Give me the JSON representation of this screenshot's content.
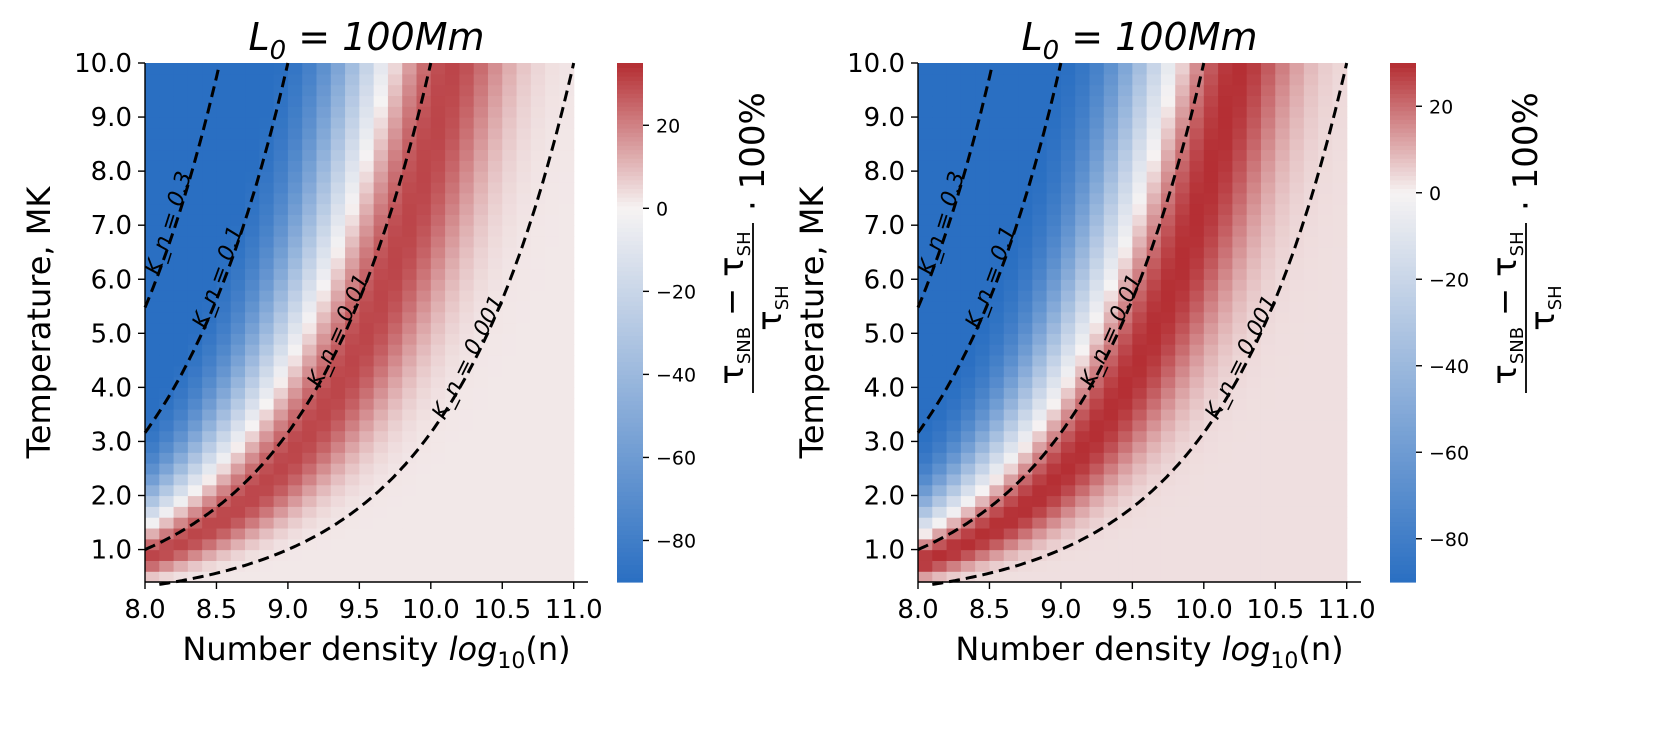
{
  "figure": {
    "colorbar_label": "(τ_SNB − τ_SH) / τ_SH · 100%",
    "colorbar_label_parts": {
      "numerator_a": "τ",
      "numerator_a_sub": "SNB",
      "minus": " − ",
      "numerator_b": "τ",
      "numerator_b_sub": "SH",
      "denominator": "τ",
      "denominator_sub": "SH",
      "suffix": "· 100%"
    }
  },
  "chart_data": [
    {
      "type": "heatmap",
      "title": "L_0 = 100Mm",
      "title_parts": {
        "main": "L",
        "sub": "0",
        "rest": " = 100Mm"
      },
      "xlabel": "Number density log10(n)",
      "xlabel_parts": {
        "prefix": "Number density ",
        "func": "log",
        "sub": "10",
        "arg": "(n)"
      },
      "ylabel": "Temperature, MK",
      "xlim": [
        8.0,
        11.1
      ],
      "ylim": [
        0.4,
        10.0
      ],
      "x_ticks": [
        "8.0",
        "8.5",
        "9.0",
        "9.5",
        "10.0",
        "10.5",
        "11.0"
      ],
      "y_ticks": [
        "1.0",
        "2.0",
        "3.0",
        "4.0",
        "5.0",
        "6.0",
        "7.0",
        "8.0",
        "9.0",
        "10.0"
      ],
      "colorbar": {
        "range": [
          -90,
          35
        ],
        "ticks": [
          -80,
          -60,
          -40,
          -20,
          0,
          20
        ],
        "tick_labels": [
          "−80",
          "−60",
          "−40",
          "−20",
          "0",
          "20"
        ]
      },
      "colormap": {
        "low": "#2a6fc2",
        "mid": "#f6f3f3",
        "high": "#b42d32"
      },
      "grid_x_extent": 11.0,
      "ridge_kn_center": 0.0075,
      "ridge_peak_value": 30,
      "background_value": 2,
      "contours": [
        {
          "label": "K_n = 0.3",
          "kn": 0.3
        },
        {
          "label": "K_n = 0.1",
          "kn": 0.1
        },
        {
          "label": "K_n = 0.01",
          "kn": 0.01
        },
        {
          "label": "K_n = 0.001",
          "kn": 0.001
        }
      ]
    },
    {
      "type": "heatmap",
      "title": "L_0 = 100Mm",
      "title_parts": {
        "main": "L",
        "sub": "0",
        "rest": " = 100Mm"
      },
      "xlabel": "Number density log10(n)",
      "xlabel_parts": {
        "prefix": "Number density ",
        "func": "log",
        "sub": "10",
        "arg": "(n)"
      },
      "ylabel": "Temperature, MK",
      "xlim": [
        8.0,
        11.1
      ],
      "ylim": [
        0.4,
        10.0
      ],
      "x_ticks": [
        "8.0",
        "8.5",
        "9.0",
        "9.5",
        "10.0",
        "10.5",
        "11.0"
      ],
      "y_ticks": [
        "1.0",
        "2.0",
        "3.0",
        "4.0",
        "5.0",
        "6.0",
        "7.0",
        "8.0",
        "9.0",
        "10.0"
      ],
      "colorbar": {
        "range": [
          -90,
          30
        ],
        "ticks": [
          -80,
          -60,
          -40,
          -20,
          0,
          20
        ],
        "tick_labels": [
          "−80",
          "−60",
          "−40",
          "−20",
          "0",
          "20"
        ]
      },
      "colormap": {
        "low": "#2a6fc2",
        "mid": "#f6f3f3",
        "high": "#b42d32"
      },
      "grid_x_extent": 11.0,
      "ridge_kn_center": 0.006,
      "ridge_peak_value": 28,
      "background_value": 3,
      "contours": [
        {
          "label": "K_n = 0.3",
          "kn": 0.3
        },
        {
          "label": "K_n = 0.1",
          "kn": 0.1
        },
        {
          "label": "K_n = 0.01",
          "kn": 0.01
        },
        {
          "label": "K_n = 0.001",
          "kn": 0.001
        }
      ]
    }
  ]
}
